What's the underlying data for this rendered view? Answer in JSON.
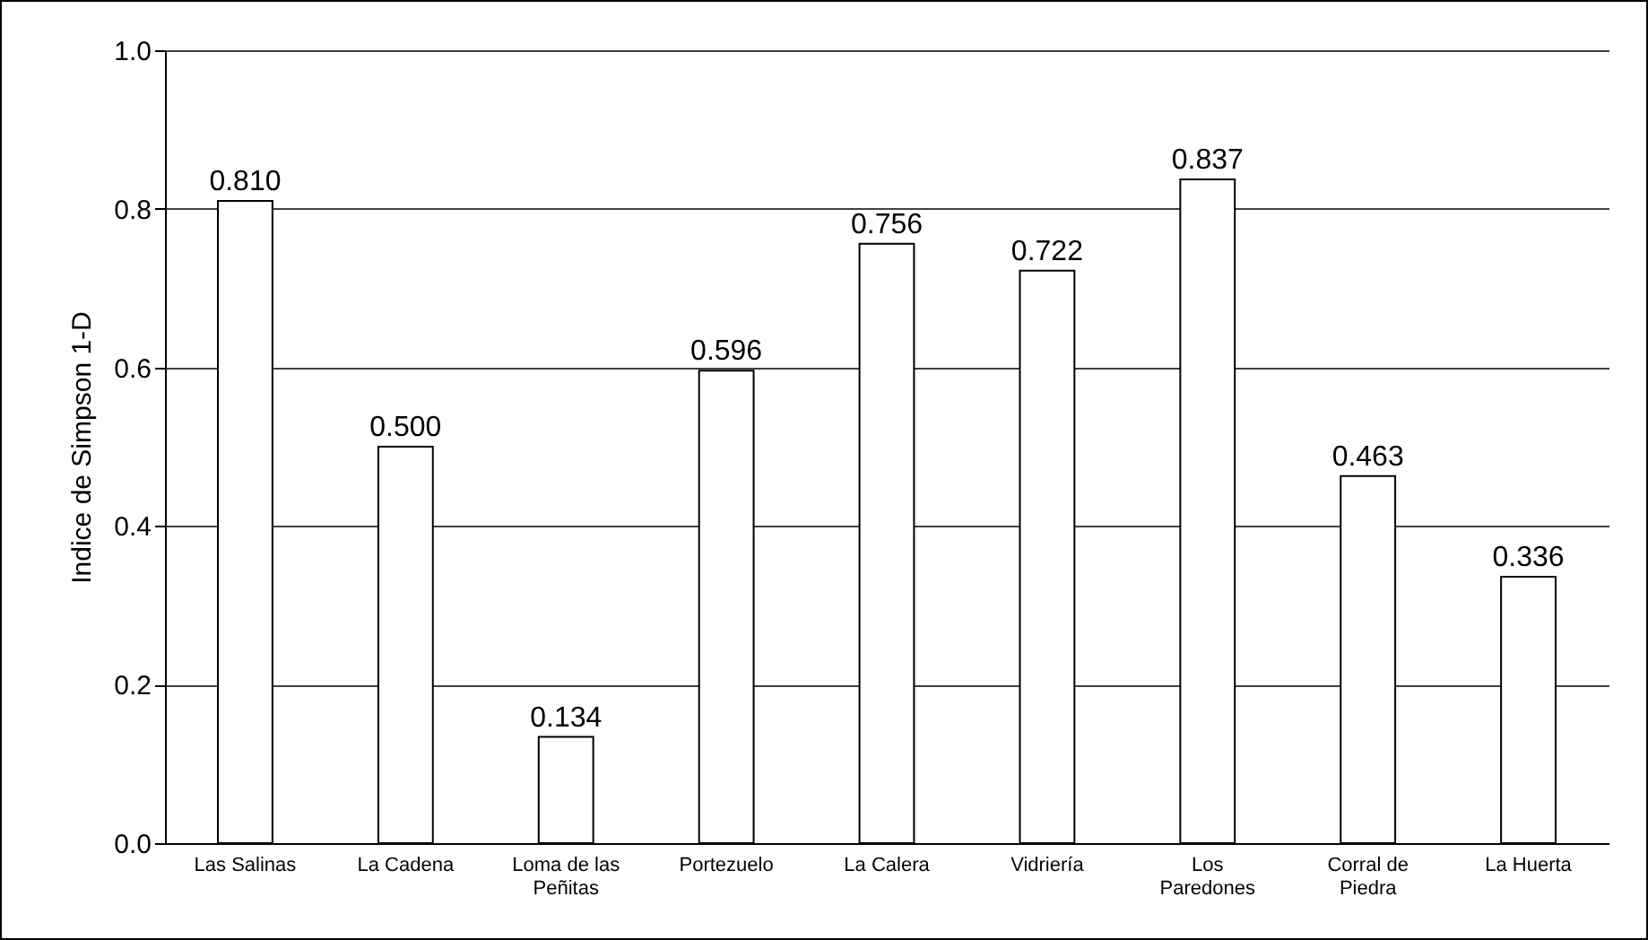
{
  "chart_data": {
    "type": "bar",
    "ylabel": "Indice de Simpson 1-D",
    "categories": [
      "Las Salinas",
      "La Cadena",
      "Loma de las\nPeñitas",
      "Portezuelo",
      "La Calera",
      "Vidriería",
      "Los\nParedones",
      "Corral de\nPiedra",
      "La Huerta"
    ],
    "values": [
      0.81,
      0.5,
      0.134,
      0.596,
      0.756,
      0.722,
      0.837,
      0.463,
      0.336
    ],
    "value_labels": [
      "0.810",
      "0.500",
      "0.134",
      "0.596",
      "0.756",
      "0.722",
      "0.837",
      "0.463",
      "0.336"
    ],
    "color": "#ffffff",
    "ylim": [
      0,
      1
    ],
    "yticks": [
      {
        "value": 0,
        "label": "0.0"
      },
      {
        "value": 0.2,
        "label": "0.2"
      },
      {
        "value": 0.4,
        "label": "0.4"
      },
      {
        "value": 0.6,
        "label": "0.6"
      },
      {
        "value": 0.8,
        "label": "0.8"
      },
      {
        "value": 1,
        "label": "1.0"
      }
    ],
    "grid": "y"
  }
}
